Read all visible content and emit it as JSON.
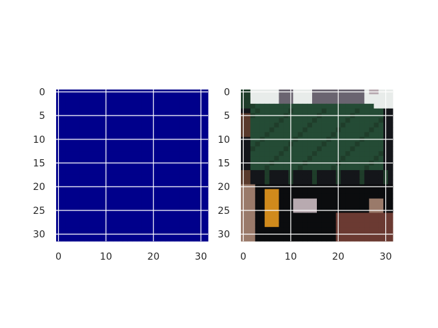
{
  "chart_data": [
    {
      "type": "heatmap",
      "description_of_content": "uniform single-value mask",
      "grid_size": [
        32,
        32
      ],
      "xticks": [
        0,
        10,
        20,
        30
      ],
      "yticks": [
        0,
        5,
        10,
        15,
        20,
        25,
        30
      ],
      "xlim": [
        -0.5,
        31.5
      ],
      "ylim": [
        31.5,
        -0.5
      ],
      "grid": true,
      "colormap": "jet",
      "uniform_value_color": "#00008b"
    },
    {
      "type": "heatmap",
      "description_of_content": "low-resolution 32x32 RGB photo",
      "grid_size": [
        32,
        32
      ],
      "xticks": [
        0,
        10,
        20,
        30
      ],
      "yticks": [
        0,
        5,
        10,
        15,
        20,
        25,
        30
      ],
      "xlim": [
        -0.5,
        31.5
      ],
      "ylim": [
        31.5,
        -0.5
      ],
      "grid": true,
      "palette": {
        "sky": "#e8ecea",
        "grey": "#6a6470",
        "green_dark": "#1f3d2a",
        "green": "#244b35",
        "dark": "#14161a",
        "black": "#0b0c0e",
        "brown": "#5a3a2c",
        "tan": "#9a7a6a",
        "orange": "#d08a1c",
        "red_brown": "#6b3a32",
        "pale": "#b8aab0"
      }
    }
  ]
}
